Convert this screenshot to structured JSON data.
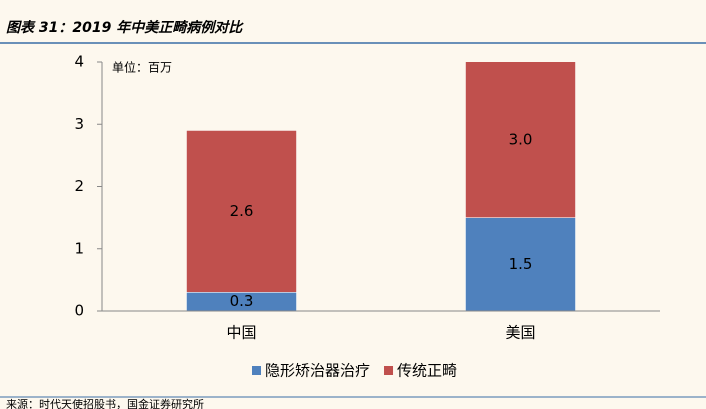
{
  "chart_data": {
    "type": "stacked_bar",
    "title": "图表 31：2019 年中美正畸病例对比",
    "unit": "单位：百万",
    "source": "来源：时代天使招股书，国金证券研究所",
    "categories": [
      "中国",
      "美国"
    ],
    "series": [
      {
        "name": "隐形矫治器治疗",
        "color": "#4f81bd",
        "values": [
          0.3,
          1.5
        ]
      },
      {
        "name": "传统正畸",
        "color": "#c0504d",
        "values": [
          2.6,
          3.0
        ],
        "value_labels": [
          "2.6",
          "3.0"
        ]
      }
    ],
    "ylim": [
      0,
      4
    ],
    "yticks": [
      0,
      1,
      2,
      3,
      4
    ]
  }
}
